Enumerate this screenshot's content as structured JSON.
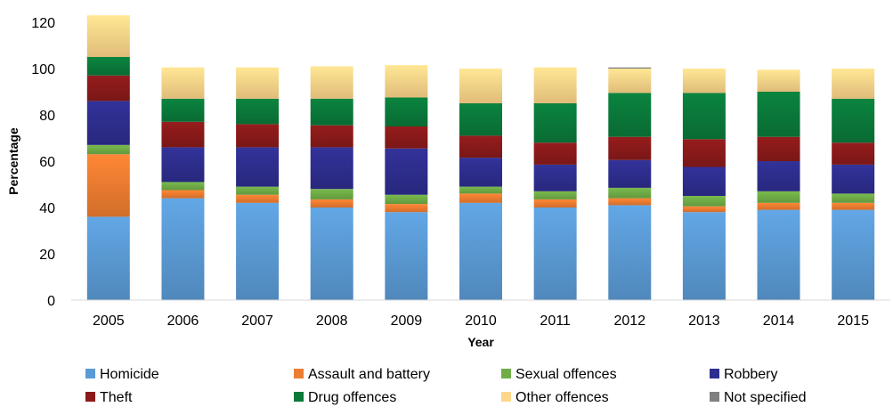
{
  "chart_data": {
    "type": "bar",
    "stacked": true,
    "title": "",
    "xlabel": "Year",
    "ylabel": "Percentage",
    "ylim": [
      0,
      120
    ],
    "yticks": [
      0,
      20,
      40,
      60,
      80,
      100,
      120
    ],
    "grid": false,
    "legend_position": "bottom",
    "categories": [
      "2005",
      "2006",
      "2007",
      "2008",
      "2009",
      "2010",
      "2011",
      "2012",
      "2013",
      "2014",
      "2015"
    ],
    "series": [
      {
        "name": "Homicide",
        "color": "#5B9BD5",
        "values": [
          36,
          44,
          42,
          40,
          38,
          42,
          40,
          41,
          38,
          39,
          39
        ]
      },
      {
        "name": "Assault and battery",
        "color": "#ED7D31",
        "values": [
          27,
          3.5,
          3.5,
          3.5,
          3.5,
          4,
          3.5,
          3,
          2.5,
          3,
          3
        ]
      },
      {
        "name": "Sexual offences",
        "color": "#70AD47",
        "values": [
          4,
          3.5,
          3.5,
          4.5,
          4,
          3,
          3.5,
          4.5,
          4.5,
          5,
          4
        ]
      },
      {
        "name": "Robbery",
        "color": "#2E2E8F",
        "values": [
          19,
          15,
          17,
          18,
          20,
          12.5,
          11.5,
          12,
          12.5,
          13,
          12.5
        ]
      },
      {
        "name": "Theft",
        "color": "#8B1A1A",
        "values": [
          11,
          11,
          10,
          9.5,
          9.5,
          9.5,
          9.5,
          10,
          12,
          10.5,
          9.5
        ]
      },
      {
        "name": "Drug offences",
        "color": "#0A7A3A",
        "values": [
          8,
          10,
          11,
          11.5,
          12.5,
          14,
          17,
          19,
          20,
          19.5,
          19
        ]
      },
      {
        "name": "Other offences",
        "color": "#FFD68A",
        "values": [
          18,
          13.5,
          13.5,
          14,
          14,
          15,
          15.5,
          10.5,
          10.5,
          9.5,
          13
        ]
      },
      {
        "name": "Not specified",
        "color": "#808080",
        "values": [
          0,
          0,
          0,
          0,
          0,
          0,
          0,
          0.5,
          0,
          0,
          0
        ]
      }
    ]
  }
}
